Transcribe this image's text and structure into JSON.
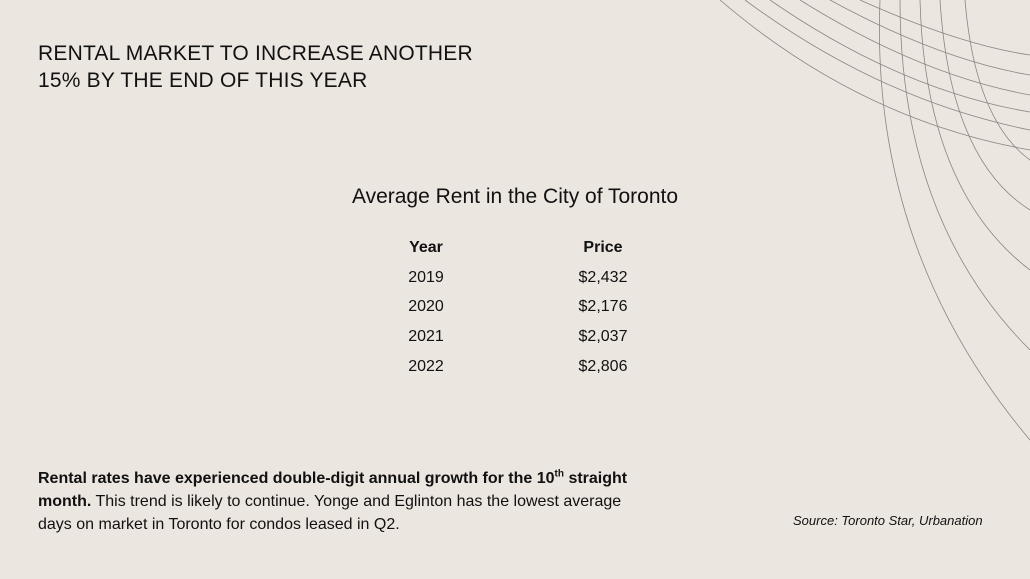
{
  "header": {
    "title": [
      "RENTAL MARKET TO INCREASE ANOTHER",
      "15% BY THE END OF THIS YEAR"
    ]
  },
  "table": {
    "title": "Average Rent in the City of Toronto",
    "columns": [
      "Year",
      "Price"
    ],
    "rows": [
      [
        "2019",
        "$2,432"
      ],
      [
        "2020",
        "$2,176"
      ],
      [
        "2021",
        "$2,037"
      ],
      [
        "2022",
        "$2,806"
      ]
    ]
  },
  "note": {
    "bold": "Rental rates have experienced double-digit annual growth for the 10",
    "superscript": "th",
    "bold_end": " straight month.",
    "text": " This trend is likely to continue. Yonge and Eglinton has the lowest average days on market in Toronto for condos leased in Q2."
  },
  "source": "Source: Toronto Star, Urbanation"
}
